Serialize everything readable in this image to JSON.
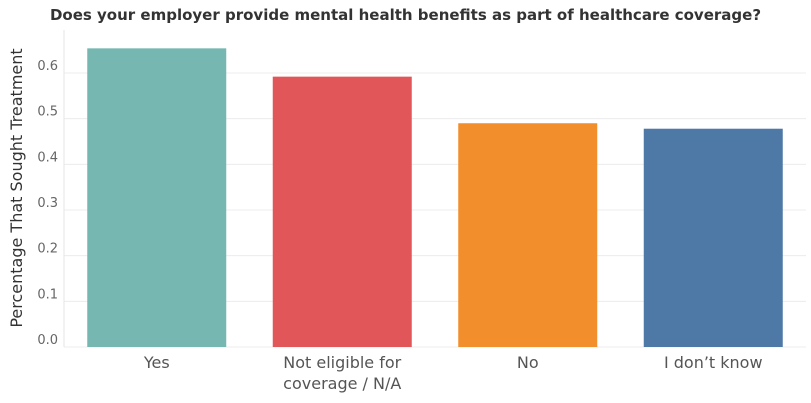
{
  "chart_data": {
    "type": "bar",
    "title": "Does your employer provide mental health benefits as part of healthcare coverage?",
    "xlabel": "",
    "ylabel": "Percentage That Sought Treatment",
    "categories": [
      "Yes",
      "Not eligible for coverage / N/A",
      "No",
      "I don’t know"
    ],
    "category_lines": [
      [
        "Yes"
      ],
      [
        "Not eligible for",
        "coverage / N/A"
      ],
      [
        "No"
      ],
      [
        "I don’t know"
      ]
    ],
    "values": [
      0.654,
      0.592,
      0.49,
      0.478
    ],
    "colors": [
      "#76b7b2",
      "#e15759",
      "#f28e2b",
      "#4e79a7"
    ],
    "yticks": [
      "0.0",
      "0.1",
      "0.2",
      "0.3",
      "0.4",
      "0.5",
      "0.6"
    ],
    "ylim": [
      0,
      0.7
    ],
    "grid": true,
    "legend": "none"
  }
}
